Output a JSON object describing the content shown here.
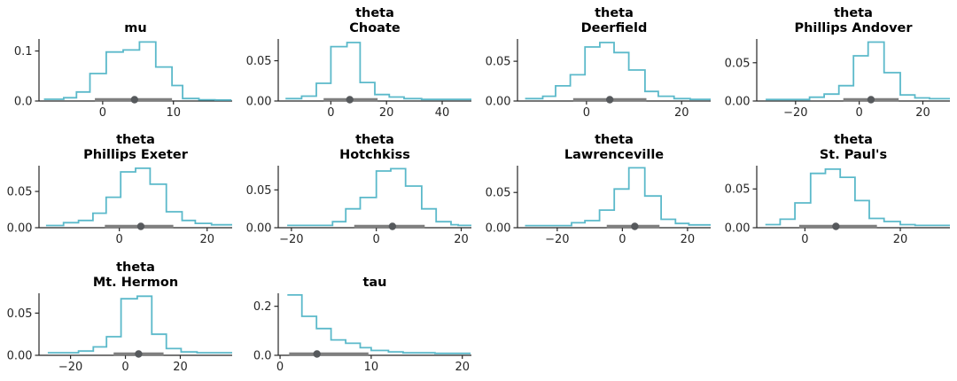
{
  "figure": {
    "background": "#ffffff",
    "line_color": "#5bb9ca",
    "interval_color": "#7f7f7f",
    "point_color": "#56595c",
    "axis_color": "#262626",
    "text_color": "#1a1a1a",
    "columns": 4,
    "rows": 3
  },
  "chart_data": [
    {
      "id": "mu",
      "type": "step-histogram",
      "row": 0,
      "col": 0,
      "title_lines": [
        "mu"
      ],
      "xlim": [
        -9.0,
        18.3
      ],
      "xticks": [
        0,
        10
      ],
      "xtick_labels": [
        "0",
        "10"
      ],
      "ylim": [
        0,
        0.124
      ],
      "yticks": [
        0.0,
        0.1
      ],
      "ytick_labels": [
        "0.0",
        "0.1"
      ],
      "edges": [
        -8.3,
        -5.5,
        -3.7,
        -1.8,
        0.5,
        2.9,
        5.2,
        7.5,
        9.8,
        11.3,
        13.6,
        15.9,
        18.2
      ],
      "heights": [
        0.0035,
        0.0065,
        0.018,
        0.055,
        0.098,
        0.102,
        0.118,
        0.068,
        0.031,
        0.005,
        0.0025,
        0.002
      ],
      "interval": {
        "lo": -1.1,
        "hi": 9.8,
        "point": 4.5
      }
    },
    {
      "id": "theta-choate",
      "type": "step-histogram",
      "row": 0,
      "col": 1,
      "title_lines": [
        "theta",
        "Choate"
      ],
      "xlim": [
        -18.9,
        50.5
      ],
      "xticks": [
        0,
        20,
        40
      ],
      "xtick_labels": [
        "0",
        "20",
        "40"
      ],
      "ylim": [
        0,
        0.077
      ],
      "yticks": [
        0.0,
        0.05
      ],
      "ytick_labels": [
        "0.00",
        "0.05"
      ],
      "edges": [
        -16.3,
        -10.5,
        -5.2,
        0,
        5.8,
        10.5,
        15.8,
        21,
        26.3,
        32.6,
        50.5
      ],
      "heights": [
        0.003,
        0.006,
        0.022,
        0.0675,
        0.0726,
        0.023,
        0.008,
        0.005,
        0.003,
        0.002
      ],
      "interval": {
        "lo": -2.6,
        "hi": 16.8,
        "point": 6.8
      }
    },
    {
      "id": "theta-deerfield",
      "type": "step-histogram",
      "row": 0,
      "col": 2,
      "title_lines": [
        "theta",
        "Deerfield"
      ],
      "xlim": [
        -14.5,
        26.1
      ],
      "xticks": [
        0,
        20
      ],
      "xtick_labels": [
        "0",
        "20"
      ],
      "ylim": [
        0,
        0.078
      ],
      "yticks": [
        0.0,
        0.05
      ],
      "ytick_labels": [
        "0.00",
        "0.05"
      ],
      "edges": [
        -12.9,
        -9.2,
        -6.5,
        -3.4,
        -0.3,
        2.8,
        5.8,
        8.9,
        12.3,
        15.1,
        18.4,
        21.8,
        26.1
      ],
      "heights": [
        0.003,
        0.006,
        0.019,
        0.033,
        0.068,
        0.0735,
        0.061,
        0.039,
        0.012,
        0.006,
        0.003,
        0.002
      ],
      "interval": {
        "lo": -2.8,
        "hi": 12.6,
        "point": 4.9
      }
    },
    {
      "id": "theta-phillips-andover",
      "type": "step-histogram",
      "row": 0,
      "col": 3,
      "title_lines": [
        "theta",
        "Phillips Andover"
      ],
      "xlim": [
        -32.2,
        28.5
      ],
      "xticks": [
        -20,
        0,
        20
      ],
      "xtick_labels": [
        "−20",
        "0",
        "20"
      ],
      "ylim": [
        0,
        0.081
      ],
      "yticks": [
        0.0,
        0.05
      ],
      "ytick_labels": [
        "0.00",
        "0.05"
      ],
      "edges": [
        -29.4,
        -15.6,
        -11,
        -6.4,
        -1.8,
        2.8,
        7.8,
        12.9,
        17.5,
        22.1,
        28.5
      ],
      "heights": [
        0.002,
        0.005,
        0.009,
        0.02,
        0.059,
        0.077,
        0.037,
        0.008,
        0.004,
        0.003
      ],
      "interval": {
        "lo": -5.0,
        "hi": 12.4,
        "point": 3.7
      }
    },
    {
      "id": "theta-phillips-exeter",
      "type": "step-histogram",
      "row": 1,
      "col": 0,
      "title_lines": [
        "theta",
        "Phillips Exeter"
      ],
      "xlim": [
        -18.3,
        25.7
      ],
      "xticks": [
        0,
        20
      ],
      "xtick_labels": [
        "0",
        "20"
      ],
      "ylim": [
        0,
        0.0855
      ],
      "yticks": [
        0.0,
        0.05
      ],
      "ytick_labels": [
        "0.00",
        "0.05"
      ],
      "edges": [
        -16.7,
        -12.7,
        -9.3,
        -6,
        -3,
        0.3,
        3.7,
        7,
        10.7,
        14.3,
        17.3,
        21,
        25.7
      ],
      "heights": [
        0.003,
        0.007,
        0.01,
        0.02,
        0.042,
        0.077,
        0.082,
        0.06,
        0.022,
        0.01,
        0.006,
        0.004
      ],
      "interval": {
        "lo": -3.3,
        "hi": 12.3,
        "point": 4.9
      }
    },
    {
      "id": "theta-hotchkiss",
      "type": "step-histogram",
      "row": 1,
      "col": 1,
      "title_lines": [
        "theta",
        "Hotchkiss"
      ],
      "xlim": [
        -23.1,
        22.4
      ],
      "xticks": [
        -20,
        0,
        20
      ],
      "xtick_labels": [
        "−20",
        "0",
        "20"
      ],
      "ylim": [
        0,
        0.082
      ],
      "yticks": [
        0.0,
        0.05
      ],
      "ytick_labels": [
        "0.00",
        "0.05"
      ],
      "edges": [
        -21,
        -10.3,
        -7.2,
        -3.8,
        0,
        3.4,
        6.9,
        10.7,
        14.1,
        17.6,
        19.3,
        22.4
      ],
      "heights": [
        0.003,
        0.008,
        0.025,
        0.04,
        0.075,
        0.078,
        0.055,
        0.025,
        0.008,
        0.004,
        0.003
      ],
      "interval": {
        "lo": -5.2,
        "hi": 11.4,
        "point": 3.8
      }
    },
    {
      "id": "theta-lawrenceville",
      "type": "step-histogram",
      "row": 1,
      "col": 2,
      "title_lines": [
        "theta",
        "Lawrenceville"
      ],
      "xlim": [
        -32.2,
        27.1
      ],
      "xticks": [
        -20,
        0,
        20
      ],
      "xtick_labels": [
        "−20",
        "0",
        "20"
      ],
      "ylim": [
        0,
        0.088
      ],
      "yticks": [
        0.0,
        0.05
      ],
      "ytick_labels": [
        "0.00",
        "0.05"
      ],
      "edges": [
        -29.9,
        -15.6,
        -11.5,
        -7,
        -2.5,
        2,
        6.9,
        11.9,
        16.3,
        20.4,
        27.1
      ],
      "heights": [
        0.003,
        0.007,
        0.01,
        0.025,
        0.055,
        0.085,
        0.045,
        0.012,
        0.006,
        0.004
      ],
      "interval": {
        "lo": -4.8,
        "hi": 11.4,
        "point": 3.8
      }
    },
    {
      "id": "theta-st-pauls",
      "type": "step-histogram",
      "row": 1,
      "col": 3,
      "title_lines": [
        "theta",
        "St. Paul's"
      ],
      "xlim": [
        -10.1,
        30.4
      ],
      "xticks": [
        0,
        20
      ],
      "xtick_labels": [
        "0",
        "20"
      ],
      "ylim": [
        0,
        0.08
      ],
      "yticks": [
        0.0,
        0.05
      ],
      "ytick_labels": [
        "0.00",
        "0.05"
      ],
      "edges": [
        -8.3,
        -5.2,
        -2.1,
        1.2,
        4.3,
        7.4,
        10.5,
        13.5,
        16.6,
        20,
        23.1,
        30.4
      ],
      "heights": [
        0.004,
        0.011,
        0.032,
        0.07,
        0.0756,
        0.065,
        0.035,
        0.012,
        0.008,
        0.004,
        0.003
      ],
      "interval": {
        "lo": -1.2,
        "hi": 15.1,
        "point": 6.5
      }
    },
    {
      "id": "theta-mt-hermon",
      "type": "step-histogram",
      "row": 2,
      "col": 0,
      "title_lines": [
        "theta",
        "Mt. Hermon"
      ],
      "xlim": [
        -31.5,
        38.9
      ],
      "xticks": [
        -20,
        0,
        20
      ],
      "xtick_labels": [
        "−20",
        "0",
        "20"
      ],
      "ylim": [
        0,
        0.0735
      ],
      "yticks": [
        0.0,
        0.05
      ],
      "ytick_labels": [
        "0.00",
        "0.05"
      ],
      "edges": [
        -28.3,
        -17.1,
        -11.7,
        -6.9,
        -1.6,
        4.3,
        9.6,
        14.9,
        20.3,
        26.1,
        38.9
      ],
      "heights": [
        0.003,
        0.005,
        0.01,
        0.022,
        0.067,
        0.07,
        0.025,
        0.008,
        0.004,
        0.003
      ],
      "interval": {
        "lo": -4.3,
        "hi": 13.9,
        "point": 4.8
      }
    },
    {
      "id": "tau",
      "type": "step-histogram",
      "row": 2,
      "col": 1,
      "title_lines": [
        "tau"
      ],
      "xlim": [
        -0.2,
        21.0
      ],
      "xticks": [
        0,
        10,
        20
      ],
      "xtick_labels": [
        "0",
        "10",
        "20"
      ],
      "ylim": [
        0,
        0.253
      ],
      "yticks": [
        0.0,
        0.2
      ],
      "ytick_labels": [
        "0.0",
        "0.2"
      ],
      "edges": [
        0.8,
        2.4,
        4.0,
        5.6,
        7.2,
        8.8,
        10.0,
        11.9,
        13.5,
        17.0,
        20.9
      ],
      "heights": [
        0.246,
        0.159,
        0.109,
        0.063,
        0.049,
        0.031,
        0.02,
        0.014,
        0.01,
        0.008
      ],
      "interval": {
        "lo": 1.0,
        "hi": 9.7,
        "point": 4.05
      }
    }
  ]
}
